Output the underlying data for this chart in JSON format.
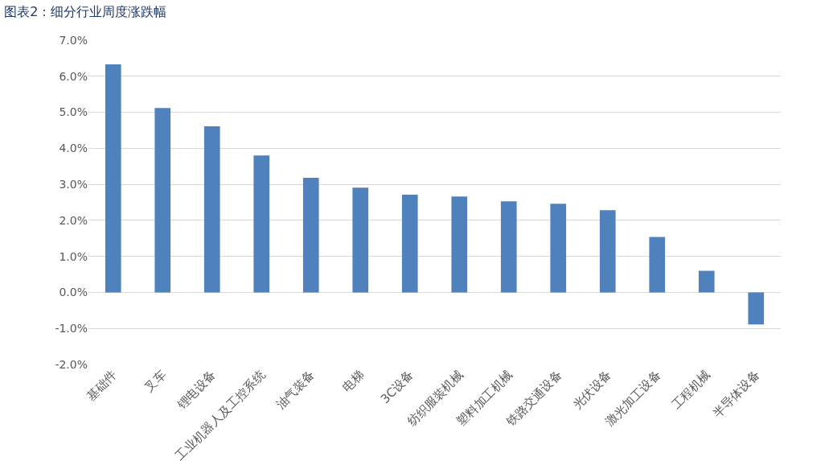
{
  "chart_data": {
    "type": "bar",
    "title": "图表2：细分行业周度涨跌幅",
    "categories": [
      "基础件",
      "叉车",
      "锂电设备",
      "工业机器人及工控系统",
      "油气装备",
      "电梯",
      "3C设备",
      "纺织服装机械",
      "塑料加工机械",
      "铁路交通设备",
      "光伏设备",
      "激光加工设备",
      "工程机械",
      "半导体设备"
    ],
    "values": [
      6.33,
      5.12,
      4.61,
      3.8,
      3.18,
      2.91,
      2.71,
      2.66,
      2.53,
      2.46,
      2.28,
      1.54,
      0.6,
      -0.89
    ],
    "color": "#4f81bd",
    "ylim": [
      -2,
      7
    ],
    "yticks": [
      {
        "value": -2,
        "label": "-2.0%"
      },
      {
        "value": -1,
        "label": "-1.0%"
      },
      {
        "value": 0,
        "label": "0.0%"
      },
      {
        "value": 1,
        "label": "1.0%"
      },
      {
        "value": 2,
        "label": "2.0%"
      },
      {
        "value": 3,
        "label": "3.0%"
      },
      {
        "value": 4,
        "label": "4.0%"
      },
      {
        "value": 5,
        "label": "5.0%"
      },
      {
        "value": 6,
        "label": "6.0%"
      },
      {
        "value": 7,
        "label": "7.0%"
      }
    ],
    "grid": true
  }
}
